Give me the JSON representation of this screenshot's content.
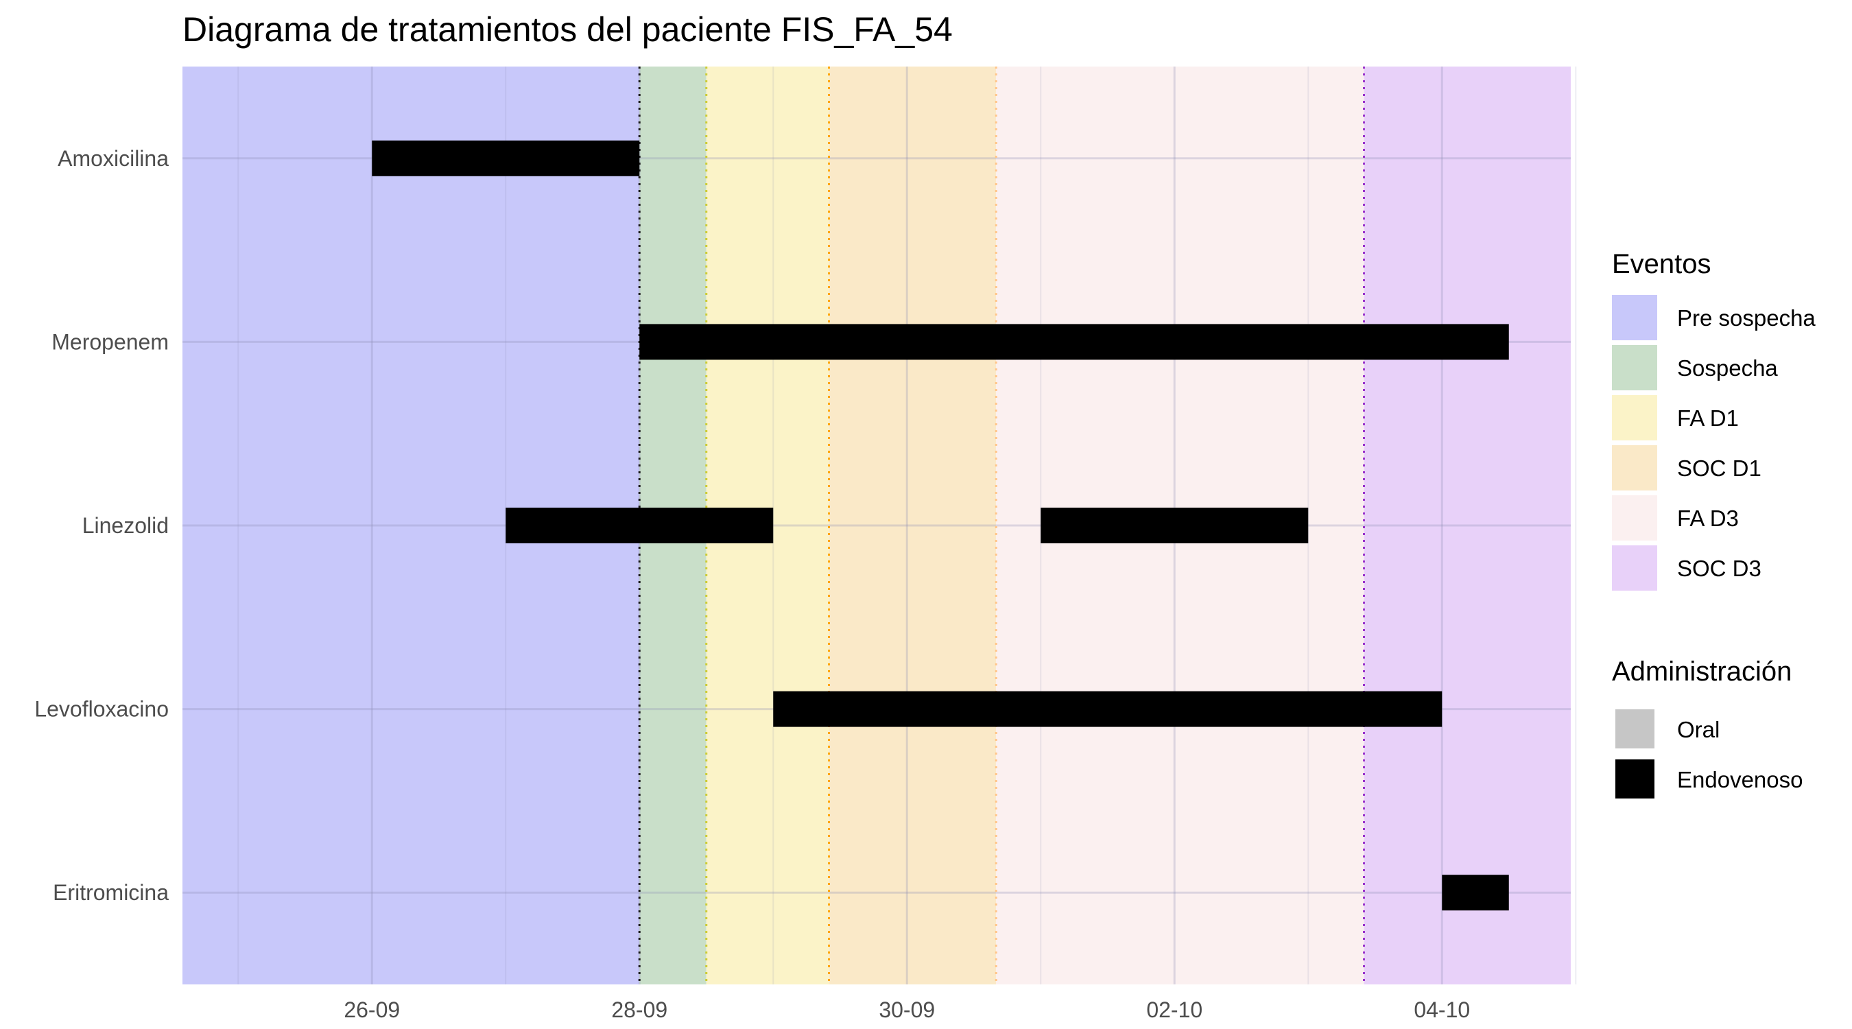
{
  "chart_data": {
    "type": "timeline",
    "title": "Diagrama de tratamientos del paciente FIS_FA_54",
    "xlabel": "",
    "ylabel": "",
    "x_tick_labels": [
      "26-09",
      "28-09",
      "30-09",
      "02-10",
      "04-10"
    ],
    "categories": [
      "Amoxicilina",
      "Meropenem",
      "Linezolid",
      "Levofloxacino",
      "Eritromicina"
    ],
    "treatments": [
      {
        "drug": "Amoxicilina",
        "start": "2023-09-26T00:00",
        "end": "2023-09-28T00:00",
        "route": "Endovenoso"
      },
      {
        "drug": "Meropenem",
        "start": "2023-09-28T00:00",
        "end": "2023-10-04T12:00",
        "route": "Endovenoso"
      },
      {
        "drug": "Linezolid",
        "start": "2023-09-27T00:00",
        "end": "2023-09-29T00:00",
        "route": "Endovenoso"
      },
      {
        "drug": "Linezolid",
        "start": "2023-10-01T00:00",
        "end": "2023-10-03T00:00",
        "route": "Endovenoso"
      },
      {
        "drug": "Levofloxacino",
        "start": "2023-09-29T00:00",
        "end": "2023-10-04T00:00",
        "route": "Endovenoso"
      },
      {
        "drug": "Eritromicina",
        "start": "2023-10-04T00:00",
        "end": "2023-10-04T12:00",
        "route": "Endovenoso"
      }
    ],
    "events": [
      {
        "label": "Pre sospecha",
        "start": "2023-09-24T12:00",
        "end": "2023-09-28T00:00",
        "color": "#c8c8fa",
        "line_color": "#1a1a1a"
      },
      {
        "label": "Sospecha",
        "start": "2023-09-28T00:00",
        "end": "2023-09-28T12:00",
        "color": "#c9dfc9",
        "line_color": "#cccc33"
      },
      {
        "label": "FA D1",
        "start": "2023-09-28T12:00",
        "end": "2023-09-29T10:00",
        "color": "#fbf3c8",
        "line_color": "#ffa500"
      },
      {
        "label": "SOC D1",
        "start": "2023-09-29T10:00",
        "end": "2023-09-30T16:00",
        "color": "#fae9c8",
        "line_color": "#ffc58a"
      },
      {
        "label": "FA D3",
        "start": "2023-09-30T16:00",
        "end": "2023-10-03T10:00",
        "color": "#fbf0f0",
        "line_color": "#9932cc"
      },
      {
        "label": "SOC D3",
        "start": "2023-10-03T10:00",
        "end": "2023-10-05T00:00",
        "color": "#e8d1f9",
        "line_color": ""
      }
    ],
    "xlim": [
      "2023-09-24T14:00",
      "2023-10-05T00:00"
    ],
    "grid": true,
    "legend_position": "right",
    "legends": {
      "events_title": "Eventos",
      "events": [
        "Pre sospecha",
        "Sospecha",
        "FA D1",
        "SOC D1",
        "FA D3",
        "SOC D3"
      ],
      "administration_title": "Administración",
      "administration": [
        {
          "label": "Oral",
          "color": "#c6c6c6"
        },
        {
          "label": "Endovenoso",
          "color": "#000000"
        }
      ]
    }
  }
}
